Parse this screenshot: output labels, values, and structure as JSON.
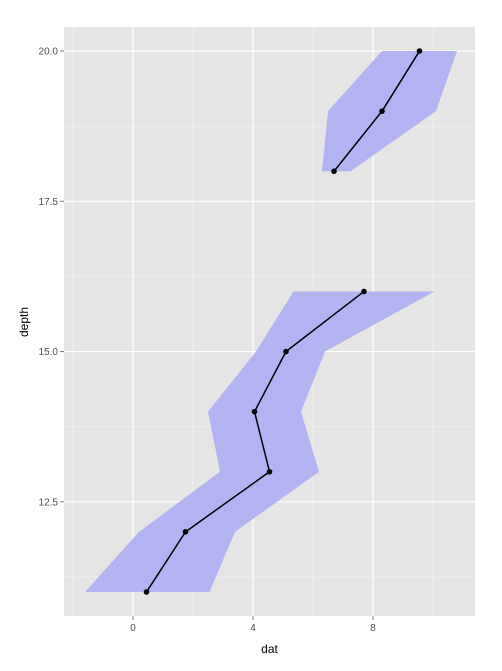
{
  "chart_data": {
    "type": "line",
    "xlabel": "dat",
    "ylabel": "depth",
    "xlim": [
      -2.3,
      11.4
    ],
    "ylim": [
      10.6,
      20.4
    ],
    "x_ticks": [
      0,
      4,
      8
    ],
    "y_ticks": [
      12.5,
      15.0,
      17.5,
      20.0
    ],
    "x_tick_labels": [
      "0",
      "4",
      "8"
    ],
    "y_tick_labels": [
      "12.5",
      "15.0",
      "17.5",
      "20.0"
    ],
    "grid": true,
    "line_series": [
      {
        "points": [
          [
            0.45,
            11
          ],
          [
            1.75,
            12
          ],
          [
            4.55,
            13
          ],
          [
            4.05,
            14
          ],
          [
            5.1,
            15
          ],
          [
            7.7,
            16
          ]
        ]
      },
      {
        "points": [
          [
            6.7,
            18
          ],
          [
            8.3,
            19
          ],
          [
            9.55,
            20
          ]
        ]
      }
    ],
    "ribbons": [
      {
        "lower": [
          [
            -1.6,
            11
          ],
          [
            0.2,
            12
          ],
          [
            2.9,
            13
          ],
          [
            2.5,
            14
          ],
          [
            4.1,
            15
          ],
          [
            5.35,
            16
          ]
        ],
        "upper": [
          [
            2.55,
            11
          ],
          [
            3.4,
            12
          ],
          [
            6.2,
            13
          ],
          [
            5.6,
            14
          ],
          [
            6.4,
            15
          ],
          [
            10.05,
            16
          ]
        ]
      },
      {
        "lower": [
          [
            6.3,
            18
          ],
          [
            6.5,
            19
          ],
          [
            8.3,
            20
          ]
        ],
        "upper": [
          [
            7.25,
            18
          ],
          [
            10.1,
            19
          ],
          [
            10.8,
            20
          ]
        ]
      }
    ],
    "colors": {
      "panel_background": "#E5E5E5",
      "grid_major": "#FFFFFF",
      "grid_minor": "#F2F2F2",
      "ribbon_fill": "#B3B3F2",
      "line": "#000000",
      "point": "#000000"
    }
  }
}
